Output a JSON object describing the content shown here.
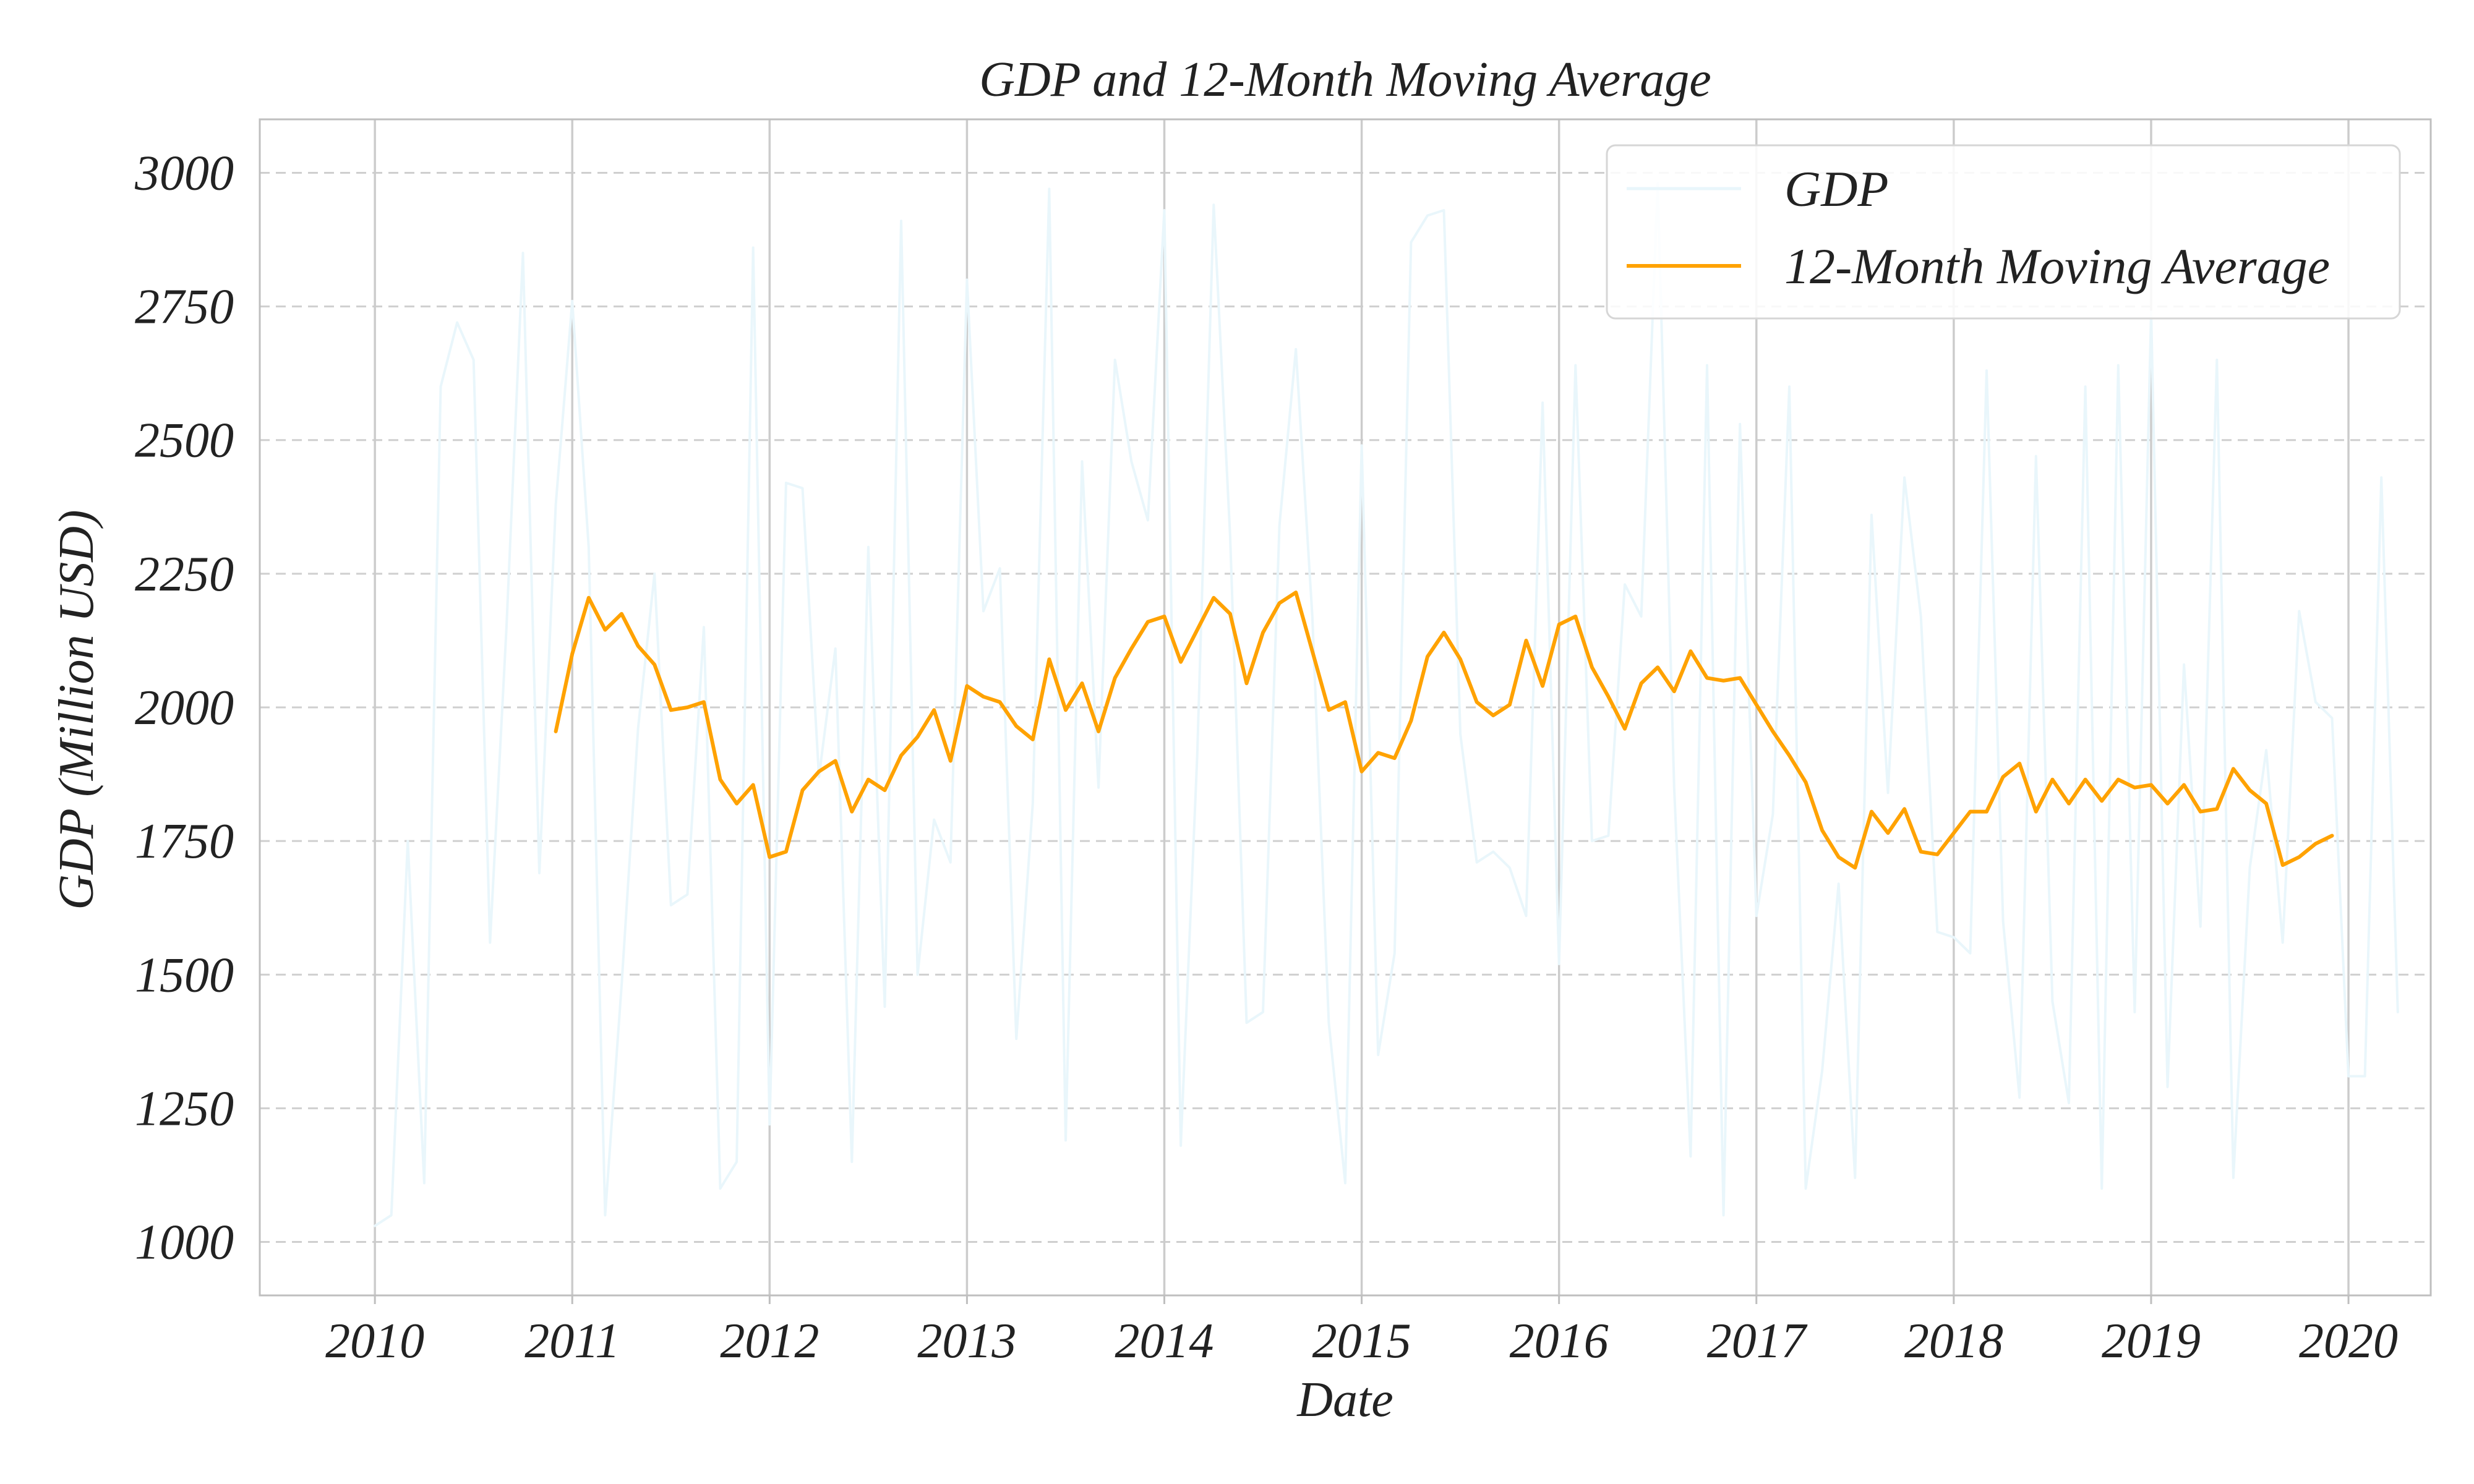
{
  "chart_data": {
    "type": "line",
    "title": "GDP and 12-Month Moving Average",
    "xlabel": "Date",
    "ylabel": "GDP (Million USD)",
    "xlim": [
      "2009-06",
      "2020-06"
    ],
    "ylim": [
      900,
      3100
    ],
    "x_ticks": [
      "2010",
      "2011",
      "2012",
      "2013",
      "2014",
      "2015",
      "2016",
      "2017",
      "2018",
      "2019",
      "2020"
    ],
    "y_ticks": [
      1000,
      1250,
      1500,
      1750,
      2000,
      2250,
      2500,
      2750,
      3000
    ],
    "grid": true,
    "legend_position": "top-right",
    "series": [
      {
        "name": "GDP",
        "color": "#e9f6fb",
        "start": "2010-01",
        "frequency": "monthly",
        "values": [
          1030,
          1050,
          1750,
          1110,
          2600,
          2720,
          2650,
          1560,
          2150,
          2850,
          1690,
          2380,
          2760,
          2300,
          1050,
          1480,
          1960,
          2250,
          1630,
          1650,
          2150,
          1100,
          1150,
          2860,
          1220,
          2420,
          2410,
          1870,
          2110,
          1150,
          2300,
          1440,
          2910,
          1500,
          1790,
          1710,
          2800,
          2180,
          2260,
          1380,
          1820,
          2970,
          1190,
          2460,
          1850,
          2650,
          2460,
          2350,
          2930,
          1180,
          1910,
          2940,
          2320,
          1410,
          1430,
          2340,
          2670,
          2170,
          1410,
          1110,
          2490,
          1350,
          1540,
          2870,
          2920,
          2930,
          1950,
          1710,
          1730,
          1700,
          1610,
          2570,
          1520,
          2640,
          1750,
          1760,
          2230,
          2170,
          2980,
          1850,
          1160,
          2640,
          1050,
          2530,
          1610,
          1800,
          2600,
          1100,
          1320,
          1670,
          1120,
          2360,
          1840,
          2430,
          2170,
          1580,
          1570,
          1540,
          2630,
          1600,
          1270,
          2470,
          1450,
          1260,
          2600,
          1100,
          2640,
          1430,
          2740,
          1290,
          2080,
          1590,
          2650,
          1120,
          1700,
          1920,
          1560,
          2180,
          2010,
          1980,
          1310,
          1310,
          2430,
          1430
        ]
      },
      {
        "name": "12-Month Moving Average",
        "color": "#ffa200",
        "start": "2010-12",
        "frequency": "monthly",
        "values": [
          1955,
          2100,
          2205,
          2145,
          2175,
          2115,
          2080,
          1995,
          2000,
          2010,
          1865,
          1820,
          1855,
          1720,
          1730,
          1845,
          1880,
          1900,
          1805,
          1865,
          1845,
          1910,
          1945,
          1995,
          1900,
          2040,
          2020,
          2010,
          1965,
          1940,
          2090,
          1995,
          2045,
          1955,
          2055,
          2110,
          2160,
          2170,
          2085,
          2145,
          2205,
          2175,
          2045,
          2140,
          2195,
          2215,
          2105,
          1995,
          2010,
          1880,
          1915,
          1905,
          1975,
          2095,
          2140,
          2090,
          2010,
          1985,
          2005,
          2125,
          2040,
          2155,
          2170,
          2075,
          2020,
          1960,
          2045,
          2075,
          2030,
          2105,
          2055,
          2050,
          2055,
          2005,
          1955,
          1910,
          1860,
          1770,
          1720,
          1700,
          1805,
          1765,
          1810,
          1730,
          1725,
          1765,
          1805,
          1805,
          1870,
          1895,
          1805,
          1865,
          1820,
          1865,
          1825,
          1865,
          1850,
          1855,
          1820,
          1855,
          1805,
          1810,
          1885,
          1845,
          1820,
          1705,
          1720,
          1745,
          1760
        ]
      }
    ]
  }
}
